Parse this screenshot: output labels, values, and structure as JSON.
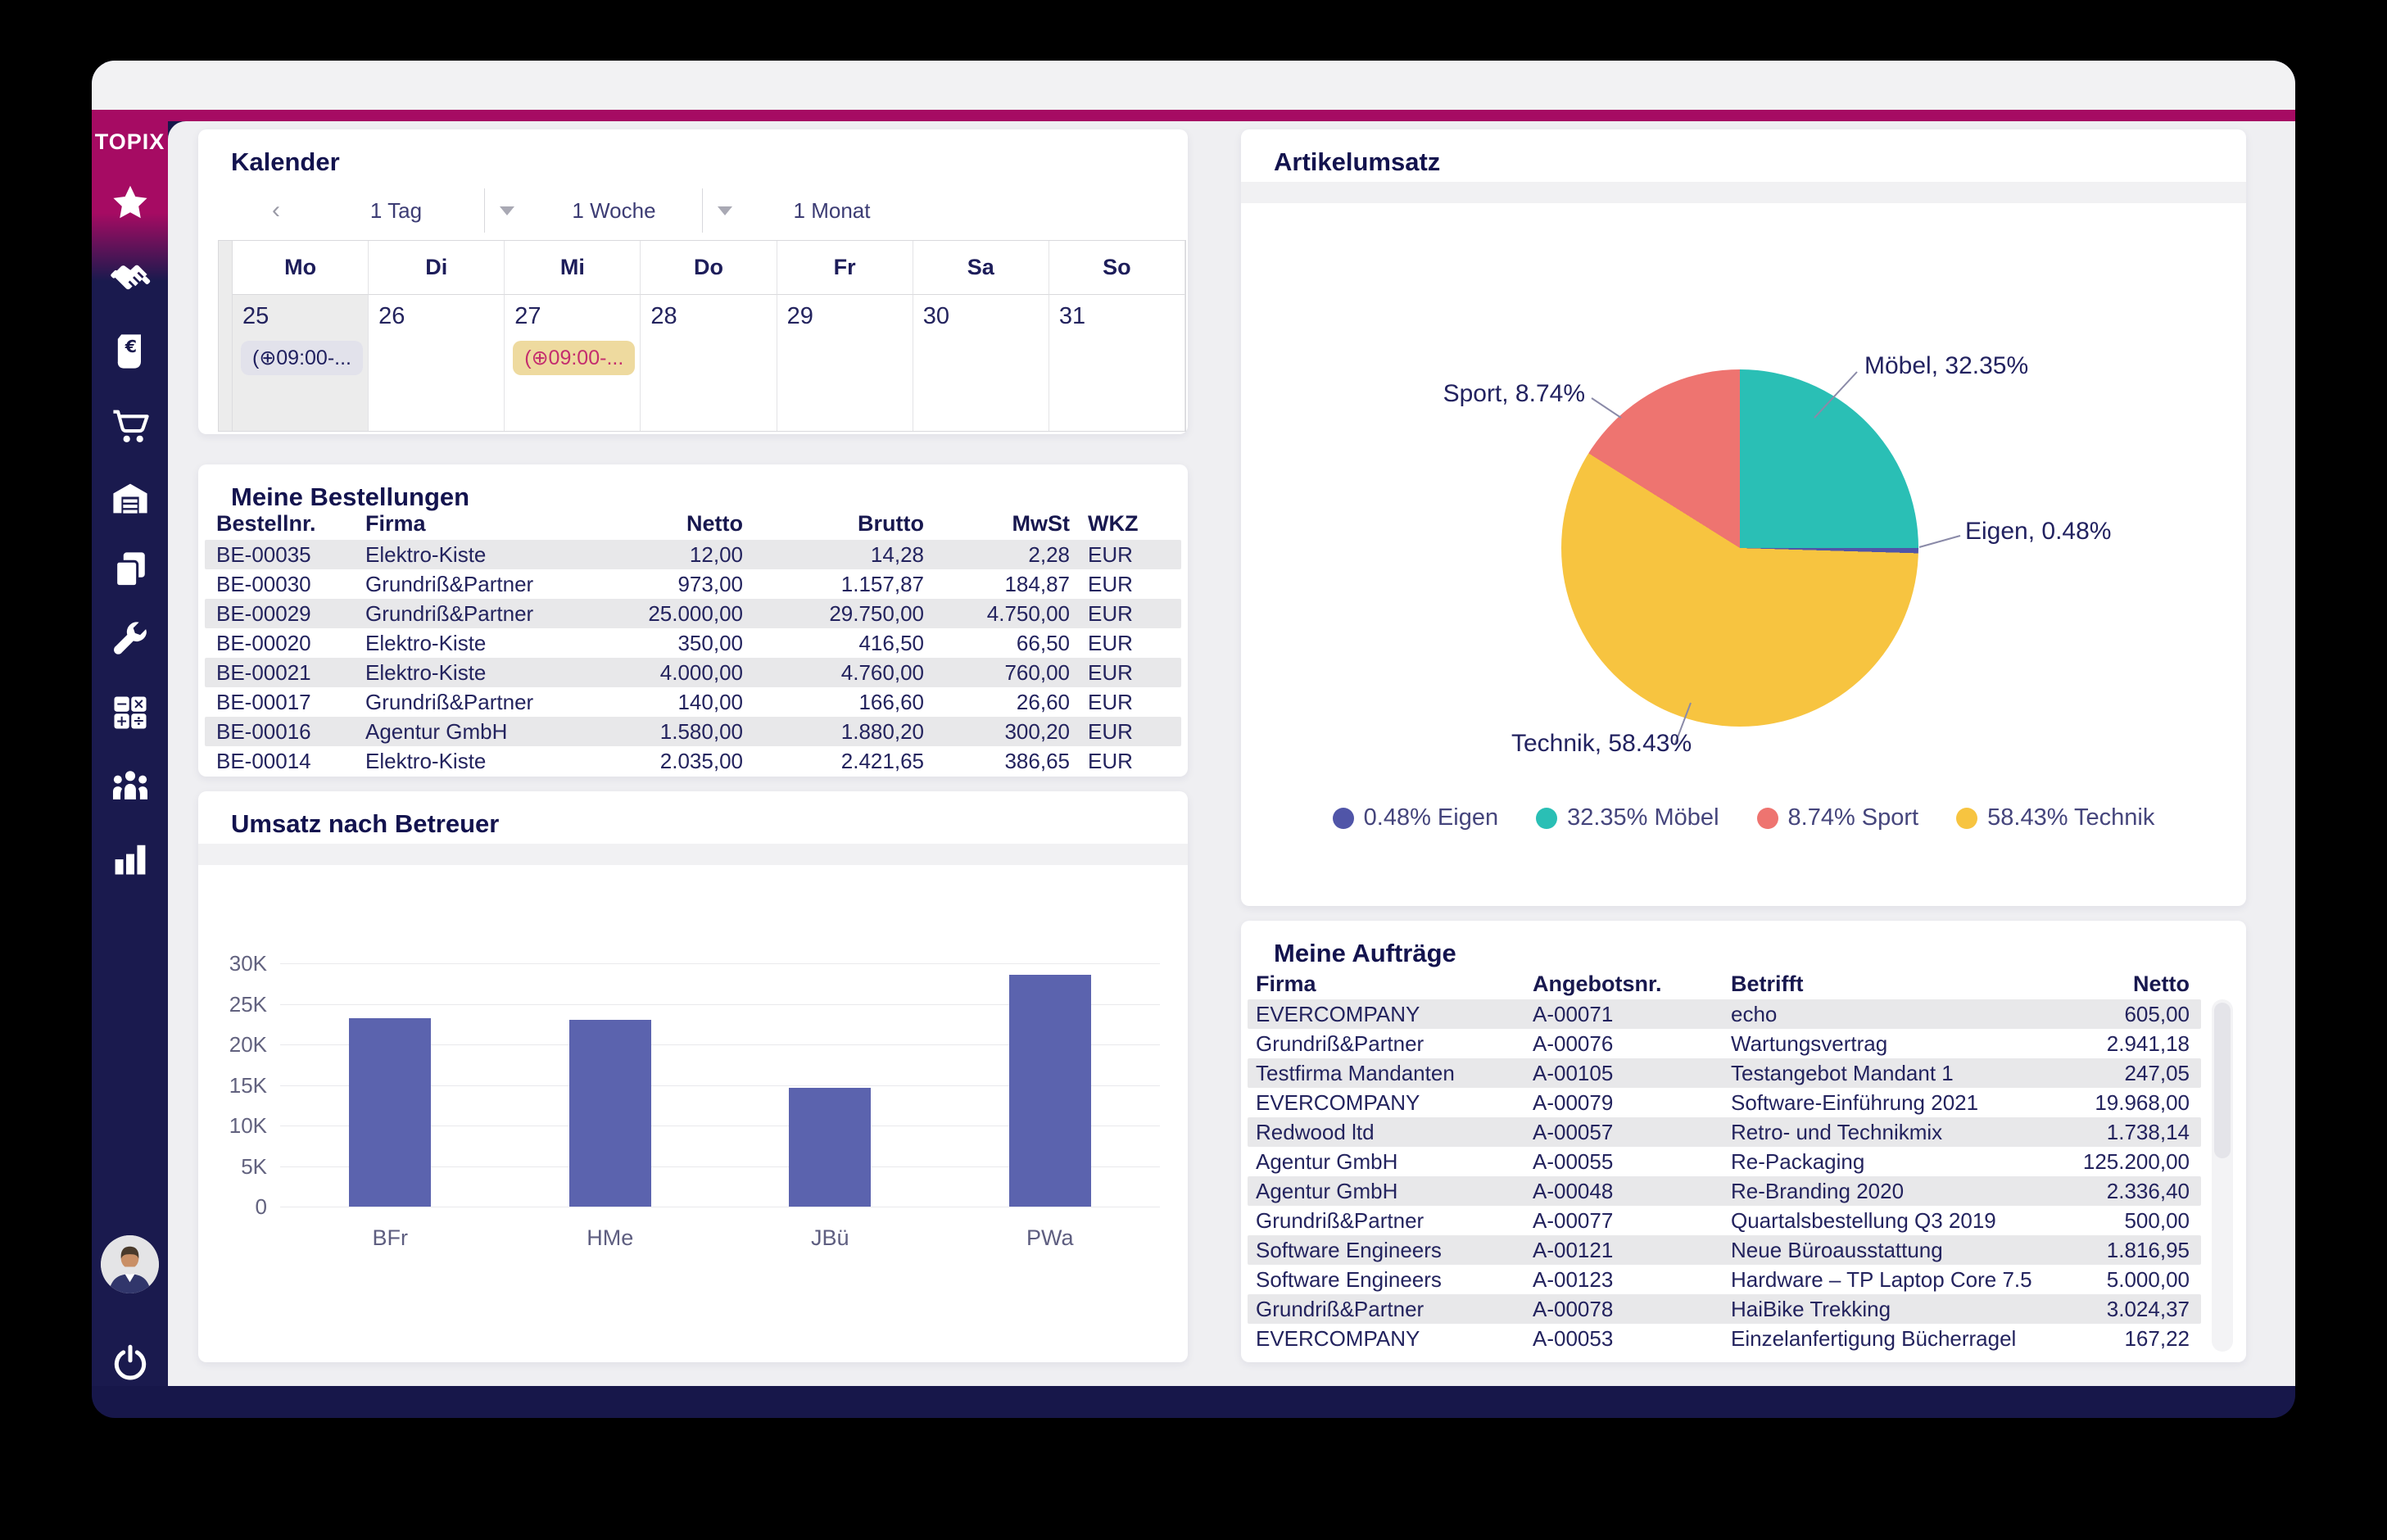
{
  "app": {
    "brand": "TOPIX"
  },
  "sidebar": {
    "items": [
      {
        "id": "favorites",
        "icon": "star-icon"
      },
      {
        "id": "crm",
        "icon": "handshake-icon"
      },
      {
        "id": "invoices",
        "icon": "receipt-euro-icon"
      },
      {
        "id": "purchasing",
        "icon": "cart-icon"
      },
      {
        "id": "warehouse",
        "icon": "warehouse-icon"
      },
      {
        "id": "documents",
        "icon": "documents-icon"
      },
      {
        "id": "tools",
        "icon": "wrench-icon"
      },
      {
        "id": "accounting",
        "icon": "calculator-icon"
      },
      {
        "id": "staff",
        "icon": "people-icon"
      },
      {
        "id": "reports",
        "icon": "bar-chart-icon"
      }
    ],
    "logout_icon": "power-icon"
  },
  "calendar": {
    "title": "Kalender",
    "toolbar": {
      "prev": "‹",
      "day": "1 Tag",
      "week": "1 Woche",
      "month": "1 Monat"
    },
    "weekdays": [
      "Mo",
      "Di",
      "Mi",
      "Do",
      "Fr",
      "Sa",
      "So"
    ],
    "days": [
      {
        "date": "25",
        "today": true,
        "event": {
          "text": "(⊕09:00-...",
          "variant": "gray"
        }
      },
      {
        "date": "26"
      },
      {
        "date": "27",
        "event": {
          "text": "(⊕09:00-...",
          "variant": "amber"
        }
      },
      {
        "date": "28"
      },
      {
        "date": "29"
      },
      {
        "date": "30"
      },
      {
        "date": "31"
      }
    ]
  },
  "orders": {
    "title": "Meine Bestellungen",
    "columns": [
      "Bestellnr.",
      "Firma",
      "Netto",
      "Brutto",
      "MwSt",
      "WKZ"
    ],
    "rows": [
      [
        "BE-00035",
        "Elektro-Kiste",
        "12,00",
        "14,28",
        "2,28",
        "EUR"
      ],
      [
        "BE-00030",
        "Grundriß&Partner",
        "973,00",
        "1.157,87",
        "184,87",
        "EUR"
      ],
      [
        "BE-00029",
        "Grundriß&Partner",
        "25.000,00",
        "29.750,00",
        "4.750,00",
        "EUR"
      ],
      [
        "BE-00020",
        "Elektro-Kiste",
        "350,00",
        "416,50",
        "66,50",
        "EUR"
      ],
      [
        "BE-00021",
        "Elektro-Kiste",
        "4.000,00",
        "4.760,00",
        "760,00",
        "EUR"
      ],
      [
        "BE-00017",
        "Grundriß&Partner",
        "140,00",
        "166,60",
        "26,60",
        "EUR"
      ],
      [
        "BE-00016",
        "Agentur GmbH",
        "1.580,00",
        "1.880,20",
        "300,20",
        "EUR"
      ],
      [
        "BE-00014",
        "Elektro-Kiste",
        "2.035,00",
        "2.421,65",
        "386,65",
        "EUR"
      ]
    ]
  },
  "auftraege": {
    "title": "Meine Aufträge",
    "columns": [
      "Firma",
      "Angebotsnr.",
      "Betrifft",
      "Netto"
    ],
    "rows": [
      [
        "EVERCOMPANY",
        "A-00071",
        "echo",
        "605,00"
      ],
      [
        "Grundriß&Partner",
        "A-00076",
        "Wartungsvertrag",
        "2.941,18"
      ],
      [
        "Testfirma Mandanten",
        "A-00105",
        "Testangebot Mandant 1",
        "247,05"
      ],
      [
        "EVERCOMPANY",
        "A-00079",
        "Software-Einführung 2021",
        "19.968,00"
      ],
      [
        "Redwood ltd",
        "A-00057",
        "Retro- und Technikmix",
        "1.738,14"
      ],
      [
        "Agentur GmbH",
        "A-00055",
        "Re-Packaging",
        "125.200,00"
      ],
      [
        "Agentur GmbH",
        "A-00048",
        "Re-Branding 2020",
        "2.336,40"
      ],
      [
        "Grundriß&Partner",
        "A-00077",
        "Quartalsbestellung Q3 2019",
        "500,00"
      ],
      [
        "Software Engineers",
        "A-00121",
        "Neue Büroausstattung",
        "1.816,95"
      ],
      [
        "Software Engineers",
        "A-00123",
        "Hardware – TP Laptop Core 7.5",
        "5.000,00"
      ],
      [
        "Grundriß&Partner",
        "A-00078",
        "HaiBike Trekking",
        "3.024,37"
      ],
      [
        "EVERCOMPANY",
        "A-00053",
        "Einzelanfertigung Bücherragel",
        "167,22"
      ]
    ]
  },
  "chart_data": [
    {
      "id": "umsatz_nach_betreuer",
      "type": "bar",
      "title": "Umsatz nach Betreuer",
      "categories": [
        "BFr",
        "HMe",
        "JBü",
        "PWa"
      ],
      "values": [
        23200,
        23000,
        14600,
        28600
      ],
      "xlabel": "",
      "ylabel": "",
      "ylim": [
        0,
        30000
      ],
      "yticks": [
        "0",
        "5K",
        "10K",
        "15K",
        "20K",
        "25K",
        "30K"
      ],
      "grid": true,
      "bar_color": "#5b63ae"
    },
    {
      "id": "artikelumsatz",
      "type": "pie",
      "title": "Artikelumsatz",
      "start_angle_deg": -26.5,
      "slices": [
        {
          "label": "Möbel",
          "pct": 32.35,
          "color": "#2abfb5"
        },
        {
          "label": "Eigen",
          "pct": 0.48,
          "color": "#5055a8"
        },
        {
          "label": "Technik",
          "pct": 58.43,
          "color": "#f7c440"
        },
        {
          "label": "Sport",
          "pct": 8.74,
          "color": "#ee7470"
        }
      ],
      "callouts": {
        "moebel": "Möbel, 32.35%",
        "sport": "Sport, 8.74%",
        "eigen": "Eigen, 0.48%",
        "technik": "Technik, 58.43%"
      },
      "legend": [
        {
          "text": "0.48% Eigen",
          "color": "#5055a8"
        },
        {
          "text": "32.35% Möbel",
          "color": "#2abfb5"
        },
        {
          "text": "8.74% Sport",
          "color": "#ee7470"
        },
        {
          "text": "58.43% Technik",
          "color": "#f7c440"
        }
      ],
      "legend_position": "bottom"
    }
  ],
  "colors": {
    "brand_magenta": "#a60b63",
    "sidebar_navy": "#1a1a4e",
    "content_bg": "#efeff2",
    "row_stripe": "#e8e8ea",
    "heading_navy": "#13134e",
    "event_gray_bg": "#e2e2eb",
    "event_amber_bg": "#eeda9f",
    "event_amber_text": "#c42d6e"
  }
}
